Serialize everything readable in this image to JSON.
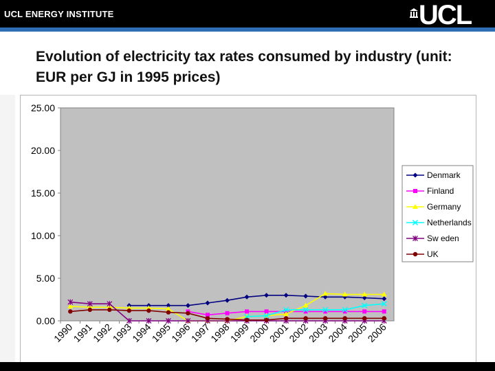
{
  "header": {
    "institute": "UCL ENERGY INSTITUTE",
    "logo_text": "UCL",
    "logo_icon": "portico-icon"
  },
  "slide": {
    "title": "Evolution of electricity tax rates consumed by industry (unit: EUR per GJ in 1995 prices)"
  },
  "colors": {
    "plot_bg": "#c0c0c0",
    "header_bg": "#000000",
    "accent_stripe": "#2f6db5"
  },
  "chart_data": {
    "type": "line",
    "title": "",
    "xlabel": "",
    "ylabel": "",
    "ylim": [
      0,
      25
    ],
    "yticks": [
      "0.00",
      "5.00",
      "10.00",
      "15.00",
      "20.00",
      "25.00"
    ],
    "categories": [
      "1990",
      "1991",
      "1992",
      "1993",
      "1994",
      "1995",
      "1996",
      "1997",
      "1998",
      "1999",
      "2000",
      "2001",
      "2002",
      "2003",
      "2004",
      "2005",
      "2006"
    ],
    "legend_position": "right",
    "series": [
      {
        "name": "Denmark",
        "color": "#000080",
        "marker": "diamond",
        "values": [
          null,
          null,
          null,
          1.8,
          1.8,
          1.8,
          1.8,
          2.1,
          2.4,
          2.8,
          3.0,
          3.0,
          2.9,
          2.8,
          2.8,
          2.7,
          2.6
        ]
      },
      {
        "name": "Finland",
        "color": "#ff00ff",
        "marker": "square",
        "values": [
          null,
          null,
          null,
          null,
          null,
          null,
          1.1,
          0.7,
          0.9,
          1.1,
          1.1,
          1.1,
          1.1,
          1.1,
          1.1,
          1.1,
          1.1
        ]
      },
      {
        "name": "Germany",
        "color": "#ffff00",
        "marker": "triangle",
        "values": [
          1.7,
          1.6,
          1.6,
          1.5,
          1.5,
          1.4,
          0.0,
          0.0,
          0.0,
          0.5,
          0.6,
          0.8,
          1.8,
          3.2,
          3.1,
          3.1,
          3.1
        ]
      },
      {
        "name": "Netherlands",
        "color": "#00ffff",
        "marker": "x",
        "values": [
          null,
          null,
          null,
          null,
          null,
          null,
          null,
          null,
          null,
          0.5,
          0.6,
          1.3,
          1.3,
          1.3,
          1.3,
          1.8,
          2.0
        ]
      },
      {
        "name": "Sw eden",
        "color": "#800080",
        "marker": "star",
        "values": [
          2.2,
          2.0,
          2.0,
          0.0,
          0.0,
          0.0,
          0.0,
          0.0,
          0.0,
          0.0,
          0.0,
          0.0,
          0.0,
          0.0,
          0.0,
          0.0,
          0.0
        ]
      },
      {
        "name": "UK",
        "color": "#800000",
        "marker": "circle",
        "values": [
          1.1,
          1.3,
          1.3,
          1.2,
          1.2,
          1.0,
          0.9,
          0.3,
          0.2,
          0.1,
          0.1,
          0.3,
          0.3,
          0.3,
          0.3,
          0.3,
          0.3
        ]
      }
    ]
  }
}
